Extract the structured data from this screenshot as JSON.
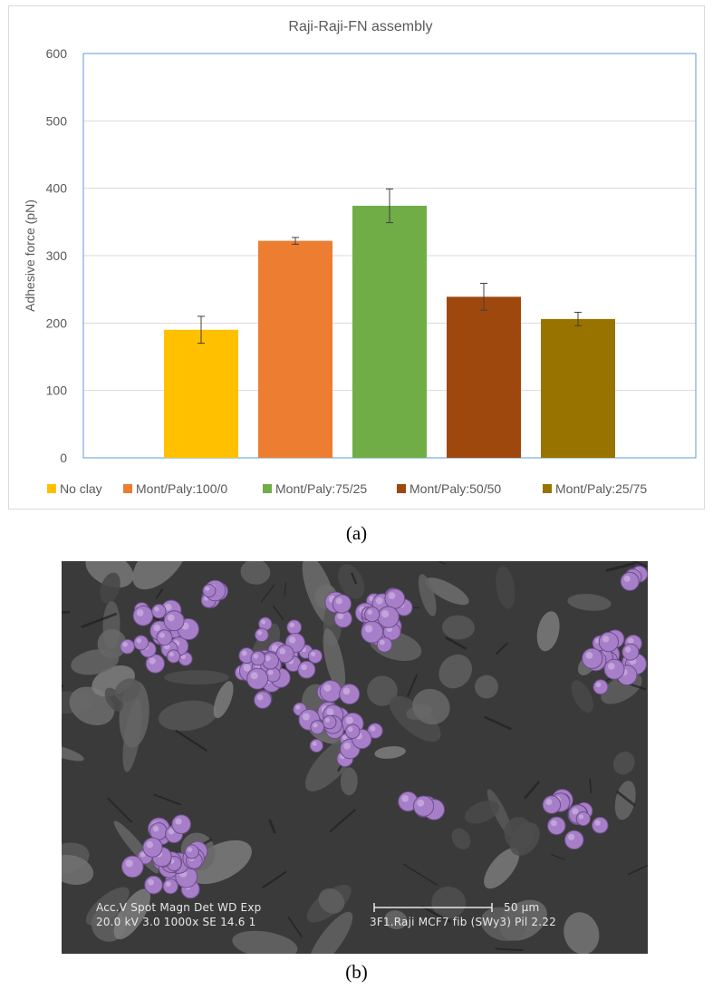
{
  "chart_data": {
    "type": "bar",
    "title": "Raji-Raji-FN assembly",
    "ylabel": "Adhesive force (pN)",
    "xlabel": "",
    "ylim": [
      0,
      600
    ],
    "yticks": [
      "0",
      "100",
      "200",
      "300",
      "400",
      "500",
      "600"
    ],
    "grid": true,
    "legend_position": "bottom",
    "categories": [
      "No clay",
      "Mont/Paly:100/0",
      "Mont/Paly:75/25",
      "Mont/Paly:50/50",
      "Mont/Paly:25/75"
    ],
    "values": [
      190,
      322,
      374,
      239,
      206
    ],
    "errors": [
      20,
      5,
      25,
      20,
      10
    ],
    "colors": [
      "#FFC000",
      "#ED7D31",
      "#70AD47",
      "#9E480E",
      "#997300"
    ]
  },
  "captions": {
    "a": "(a)",
    "b": "(b)"
  },
  "micrograph": {
    "label_line1": "Acc.V   Spot Magn    Det   WD   Exp",
    "label_line2": "20.0 kV 3.0   1000x    SE   14.6   1",
    "scale": "50 µm",
    "sample": "3F1.Raji MCF7 fib (SWy3) Pil 2.22",
    "colors": {
      "cells": "#a77fc9",
      "background": "#3a3a3a"
    }
  }
}
